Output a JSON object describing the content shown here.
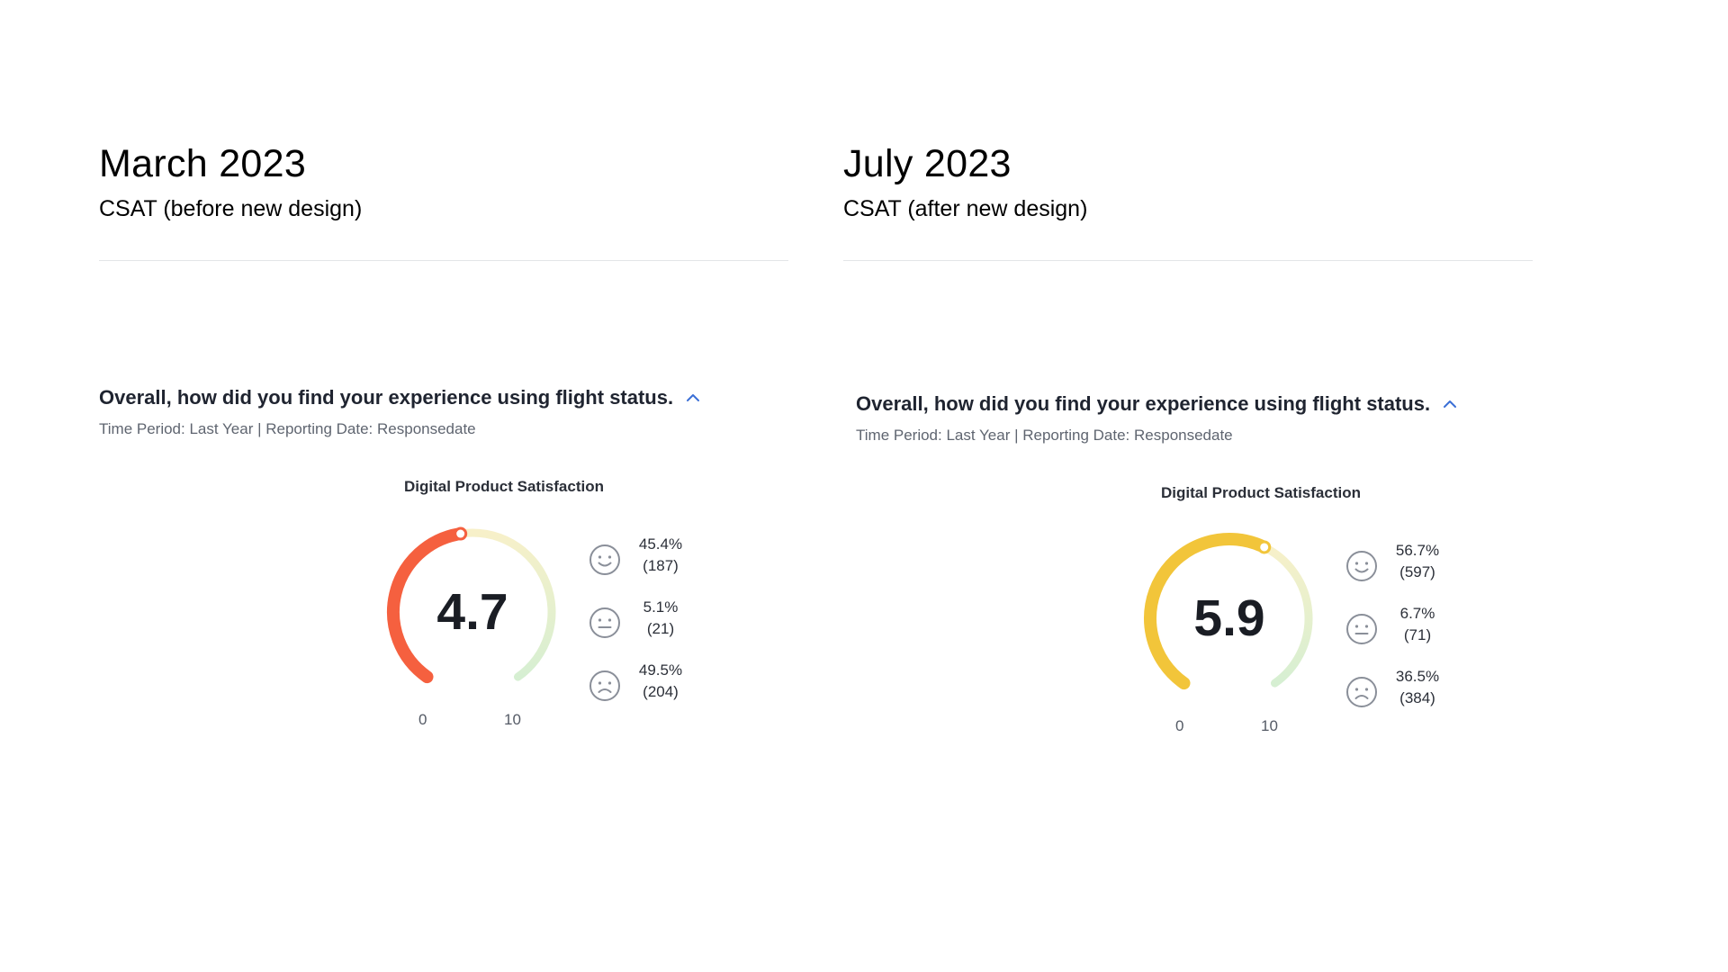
{
  "panels": [
    {
      "period": "March 2023",
      "subtitle": "CSAT (before new design)",
      "question": "Overall, how did you find your experience using flight status.",
      "meta": "Time Period: Last Year | Reporting Date: Responsedate",
      "widget_title": "Digital Product Satisfaction",
      "score": "4.7",
      "score_value": 4.7,
      "scale_min": "0",
      "scale_max": "10",
      "accent_color": "#f5603f",
      "breakdown": [
        {
          "sentiment": "satisfied",
          "icon": "smile-face-icon",
          "percent": "45.4%",
          "count": "(187)"
        },
        {
          "sentiment": "neutral",
          "icon": "neutral-face-icon",
          "percent": "5.1%",
          "count": "(21)"
        },
        {
          "sentiment": "dissatisfied",
          "icon": "frown-face-icon",
          "percent": "49.5%",
          "count": "(204)"
        }
      ]
    },
    {
      "period": "July 2023",
      "subtitle": "CSAT (after new design)",
      "question": "Overall, how did you find your experience using flight status.",
      "meta": "Time Period: Last Year | Reporting Date: Responsedate",
      "widget_title": "Digital Product Satisfaction",
      "score": "5.9",
      "score_value": 5.9,
      "scale_min": "0",
      "scale_max": "10",
      "accent_color": "#f2c53a",
      "breakdown": [
        {
          "sentiment": "satisfied",
          "icon": "smile-face-icon",
          "percent": "56.7%",
          "count": "(597)"
        },
        {
          "sentiment": "neutral",
          "icon": "neutral-face-icon",
          "percent": "6.7%",
          "count": "(71)"
        },
        {
          "sentiment": "dissatisfied",
          "icon": "frown-face-icon",
          "percent": "36.5%",
          "count": "(384)"
        }
      ]
    }
  ],
  "colors": {
    "link_blue": "#3b6fd6",
    "track_light_yellow": "#f7f0c9",
    "track_light_green": "#d6efd2",
    "face_gray": "#8a8f99"
  }
}
